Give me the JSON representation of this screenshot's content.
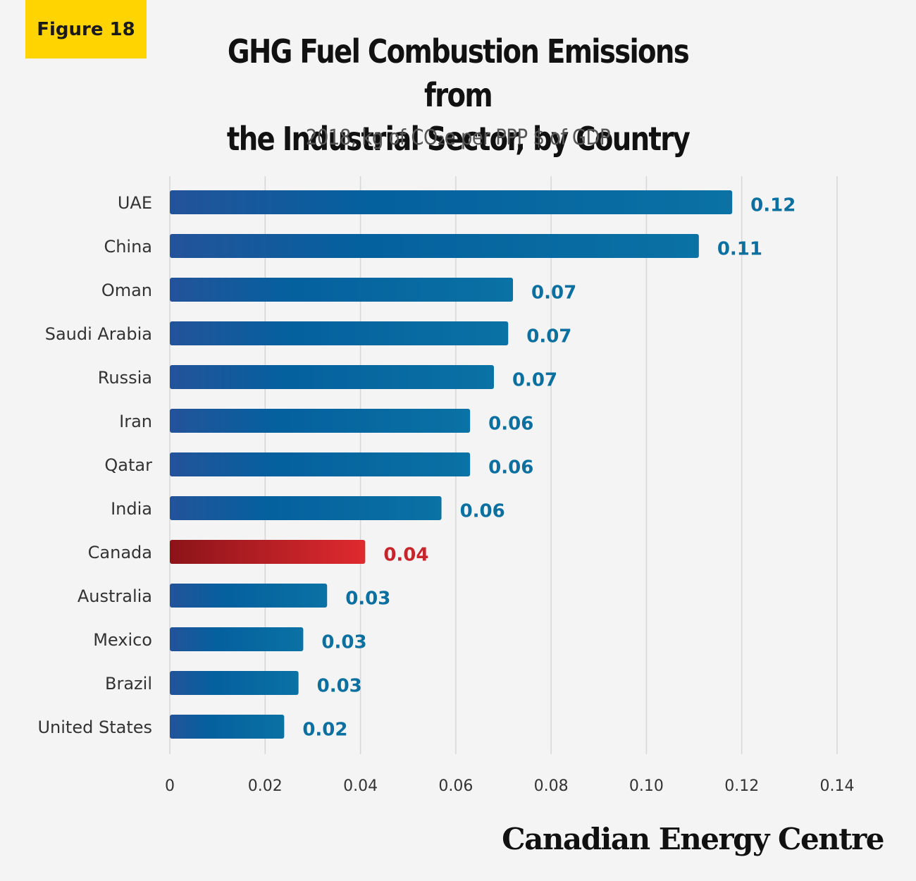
{
  "figure_label": "Figure 18",
  "brand": "Canadian Energy Centre",
  "colors": {
    "bar_blue_start": "#23539a",
    "bar_blue_end": "#0a72a4",
    "bar_red_start": "#8b1419",
    "bar_red_end": "#df2a2f",
    "label_blue": "#0b6fa0",
    "label_red": "#c7252b",
    "badge_yellow": "#ffd400",
    "grid": "#d7d7d7"
  },
  "chart_data": {
    "type": "bar",
    "orientation": "horizontal",
    "title_lines": [
      "GHG Fuel Combustion Emissions from",
      "the Industrial Sector, by Country"
    ],
    "subtitle": "2018, kg of CO₂e per PPP $ of GDP",
    "categories": [
      "UAE",
      "China",
      "Oman",
      "Saudi Arabia",
      "Russia",
      "Iran",
      "Qatar",
      "India",
      "Canada",
      "Australia",
      "Mexico",
      "Brazil",
      "United States"
    ],
    "values": [
      0.118,
      0.111,
      0.072,
      0.071,
      0.068,
      0.063,
      0.063,
      0.057,
      0.041,
      0.033,
      0.028,
      0.027,
      0.024
    ],
    "value_labels": [
      "0.12",
      "0.11",
      "0.07",
      "0.07",
      "0.07",
      "0.06",
      "0.06",
      "0.06",
      "0.04",
      "0.03",
      "0.03",
      "0.03",
      "0.02"
    ],
    "highlight": "Canada",
    "xlim": [
      0,
      0.14
    ],
    "xticks": [
      0,
      0.02,
      0.04,
      0.06,
      0.08,
      0.1,
      0.12,
      0.14
    ],
    "xtick_labels": [
      "0",
      "0.02",
      "0.04",
      "0.06",
      "0.08",
      "0.10",
      "0.12",
      "0.14"
    ],
    "grid": "vertical"
  }
}
